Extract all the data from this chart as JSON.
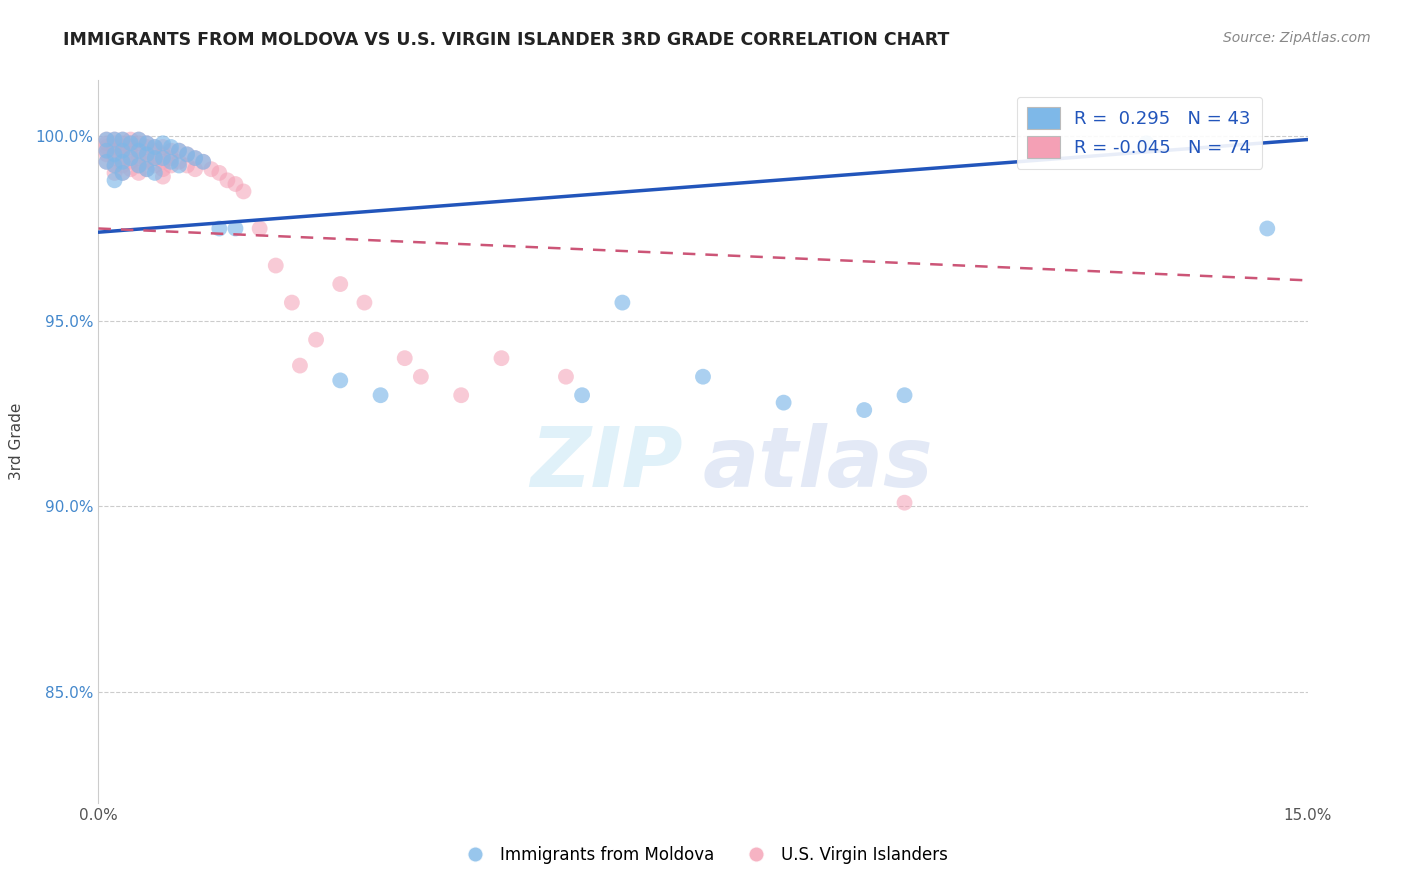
{
  "title": "IMMIGRANTS FROM MOLDOVA VS U.S. VIRGIN ISLANDER 3RD GRADE CORRELATION CHART",
  "source": "Source: ZipAtlas.com",
  "ylabel": "3rd Grade",
  "xlim": [
    0.0,
    0.15
  ],
  "ylim": [
    0.82,
    1.015
  ],
  "xticks": [
    0.0,
    0.025,
    0.05,
    0.075,
    0.1,
    0.125,
    0.15
  ],
  "xticklabels": [
    "0.0%",
    "",
    "",
    "",
    "",
    "",
    "15.0%"
  ],
  "yticks": [
    0.85,
    0.9,
    0.95,
    1.0
  ],
  "yticklabels": [
    "85.0%",
    "90.0%",
    "95.0%",
    "100.0%"
  ],
  "legend_blue_label": "Immigrants from Moldova",
  "legend_pink_label": "U.S. Virgin Islanders",
  "blue_R": 0.295,
  "blue_N": 43,
  "pink_R": -0.045,
  "pink_N": 74,
  "blue_color": "#7eb8e8",
  "pink_color": "#f4a0b5",
  "blue_line_color": "#2255bb",
  "pink_line_color": "#cc5577",
  "blue_line_y0": 0.974,
  "blue_line_y1": 0.999,
  "pink_line_y0": 0.975,
  "pink_line_y1": 0.961,
  "blue_scatter_x": [
    0.001,
    0.001,
    0.001,
    0.002,
    0.002,
    0.002,
    0.002,
    0.003,
    0.003,
    0.003,
    0.003,
    0.004,
    0.004,
    0.005,
    0.005,
    0.005,
    0.006,
    0.006,
    0.006,
    0.007,
    0.007,
    0.007,
    0.008,
    0.008,
    0.009,
    0.009,
    0.01,
    0.01,
    0.011,
    0.012,
    0.013,
    0.015,
    0.017,
    0.03,
    0.035,
    0.06,
    0.065,
    0.075,
    0.085,
    0.095,
    0.1,
    0.13,
    0.145
  ],
  "blue_scatter_y": [
    0.999,
    0.996,
    0.993,
    0.999,
    0.995,
    0.992,
    0.988,
    0.999,
    0.996,
    0.993,
    0.99,
    0.998,
    0.994,
    0.999,
    0.996,
    0.992,
    0.998,
    0.995,
    0.991,
    0.997,
    0.994,
    0.99,
    0.998,
    0.994,
    0.997,
    0.993,
    0.996,
    0.992,
    0.995,
    0.994,
    0.993,
    0.975,
    0.975,
    0.934,
    0.93,
    0.93,
    0.955,
    0.935,
    0.928,
    0.926,
    0.93,
    0.998,
    0.975
  ],
  "pink_scatter_x": [
    0.001,
    0.001,
    0.001,
    0.001,
    0.001,
    0.001,
    0.002,
    0.002,
    0.002,
    0.002,
    0.002,
    0.002,
    0.002,
    0.003,
    0.003,
    0.003,
    0.003,
    0.003,
    0.003,
    0.003,
    0.004,
    0.004,
    0.004,
    0.004,
    0.004,
    0.004,
    0.005,
    0.005,
    0.005,
    0.005,
    0.005,
    0.005,
    0.006,
    0.006,
    0.006,
    0.006,
    0.006,
    0.007,
    0.007,
    0.007,
    0.007,
    0.008,
    0.008,
    0.008,
    0.008,
    0.008,
    0.009,
    0.009,
    0.009,
    0.01,
    0.01,
    0.011,
    0.011,
    0.012,
    0.012,
    0.013,
    0.014,
    0.015,
    0.016,
    0.017,
    0.018,
    0.02,
    0.022,
    0.024,
    0.025,
    0.027,
    0.03,
    0.033,
    0.038,
    0.04,
    0.045,
    0.05,
    0.058,
    0.1
  ],
  "pink_scatter_y": [
    0.999,
    0.998,
    0.997,
    0.996,
    0.995,
    0.993,
    0.999,
    0.998,
    0.997,
    0.996,
    0.994,
    0.992,
    0.99,
    0.999,
    0.998,
    0.997,
    0.996,
    0.994,
    0.992,
    0.99,
    0.999,
    0.998,
    0.997,
    0.995,
    0.993,
    0.991,
    0.999,
    0.998,
    0.996,
    0.994,
    0.992,
    0.99,
    0.998,
    0.997,
    0.995,
    0.993,
    0.991,
    0.997,
    0.996,
    0.994,
    0.992,
    0.997,
    0.995,
    0.993,
    0.991,
    0.989,
    0.996,
    0.994,
    0.992,
    0.996,
    0.993,
    0.995,
    0.992,
    0.994,
    0.991,
    0.993,
    0.991,
    0.99,
    0.988,
    0.987,
    0.985,
    0.975,
    0.965,
    0.955,
    0.938,
    0.945,
    0.96,
    0.955,
    0.94,
    0.935,
    0.93,
    0.94,
    0.935,
    0.901
  ]
}
